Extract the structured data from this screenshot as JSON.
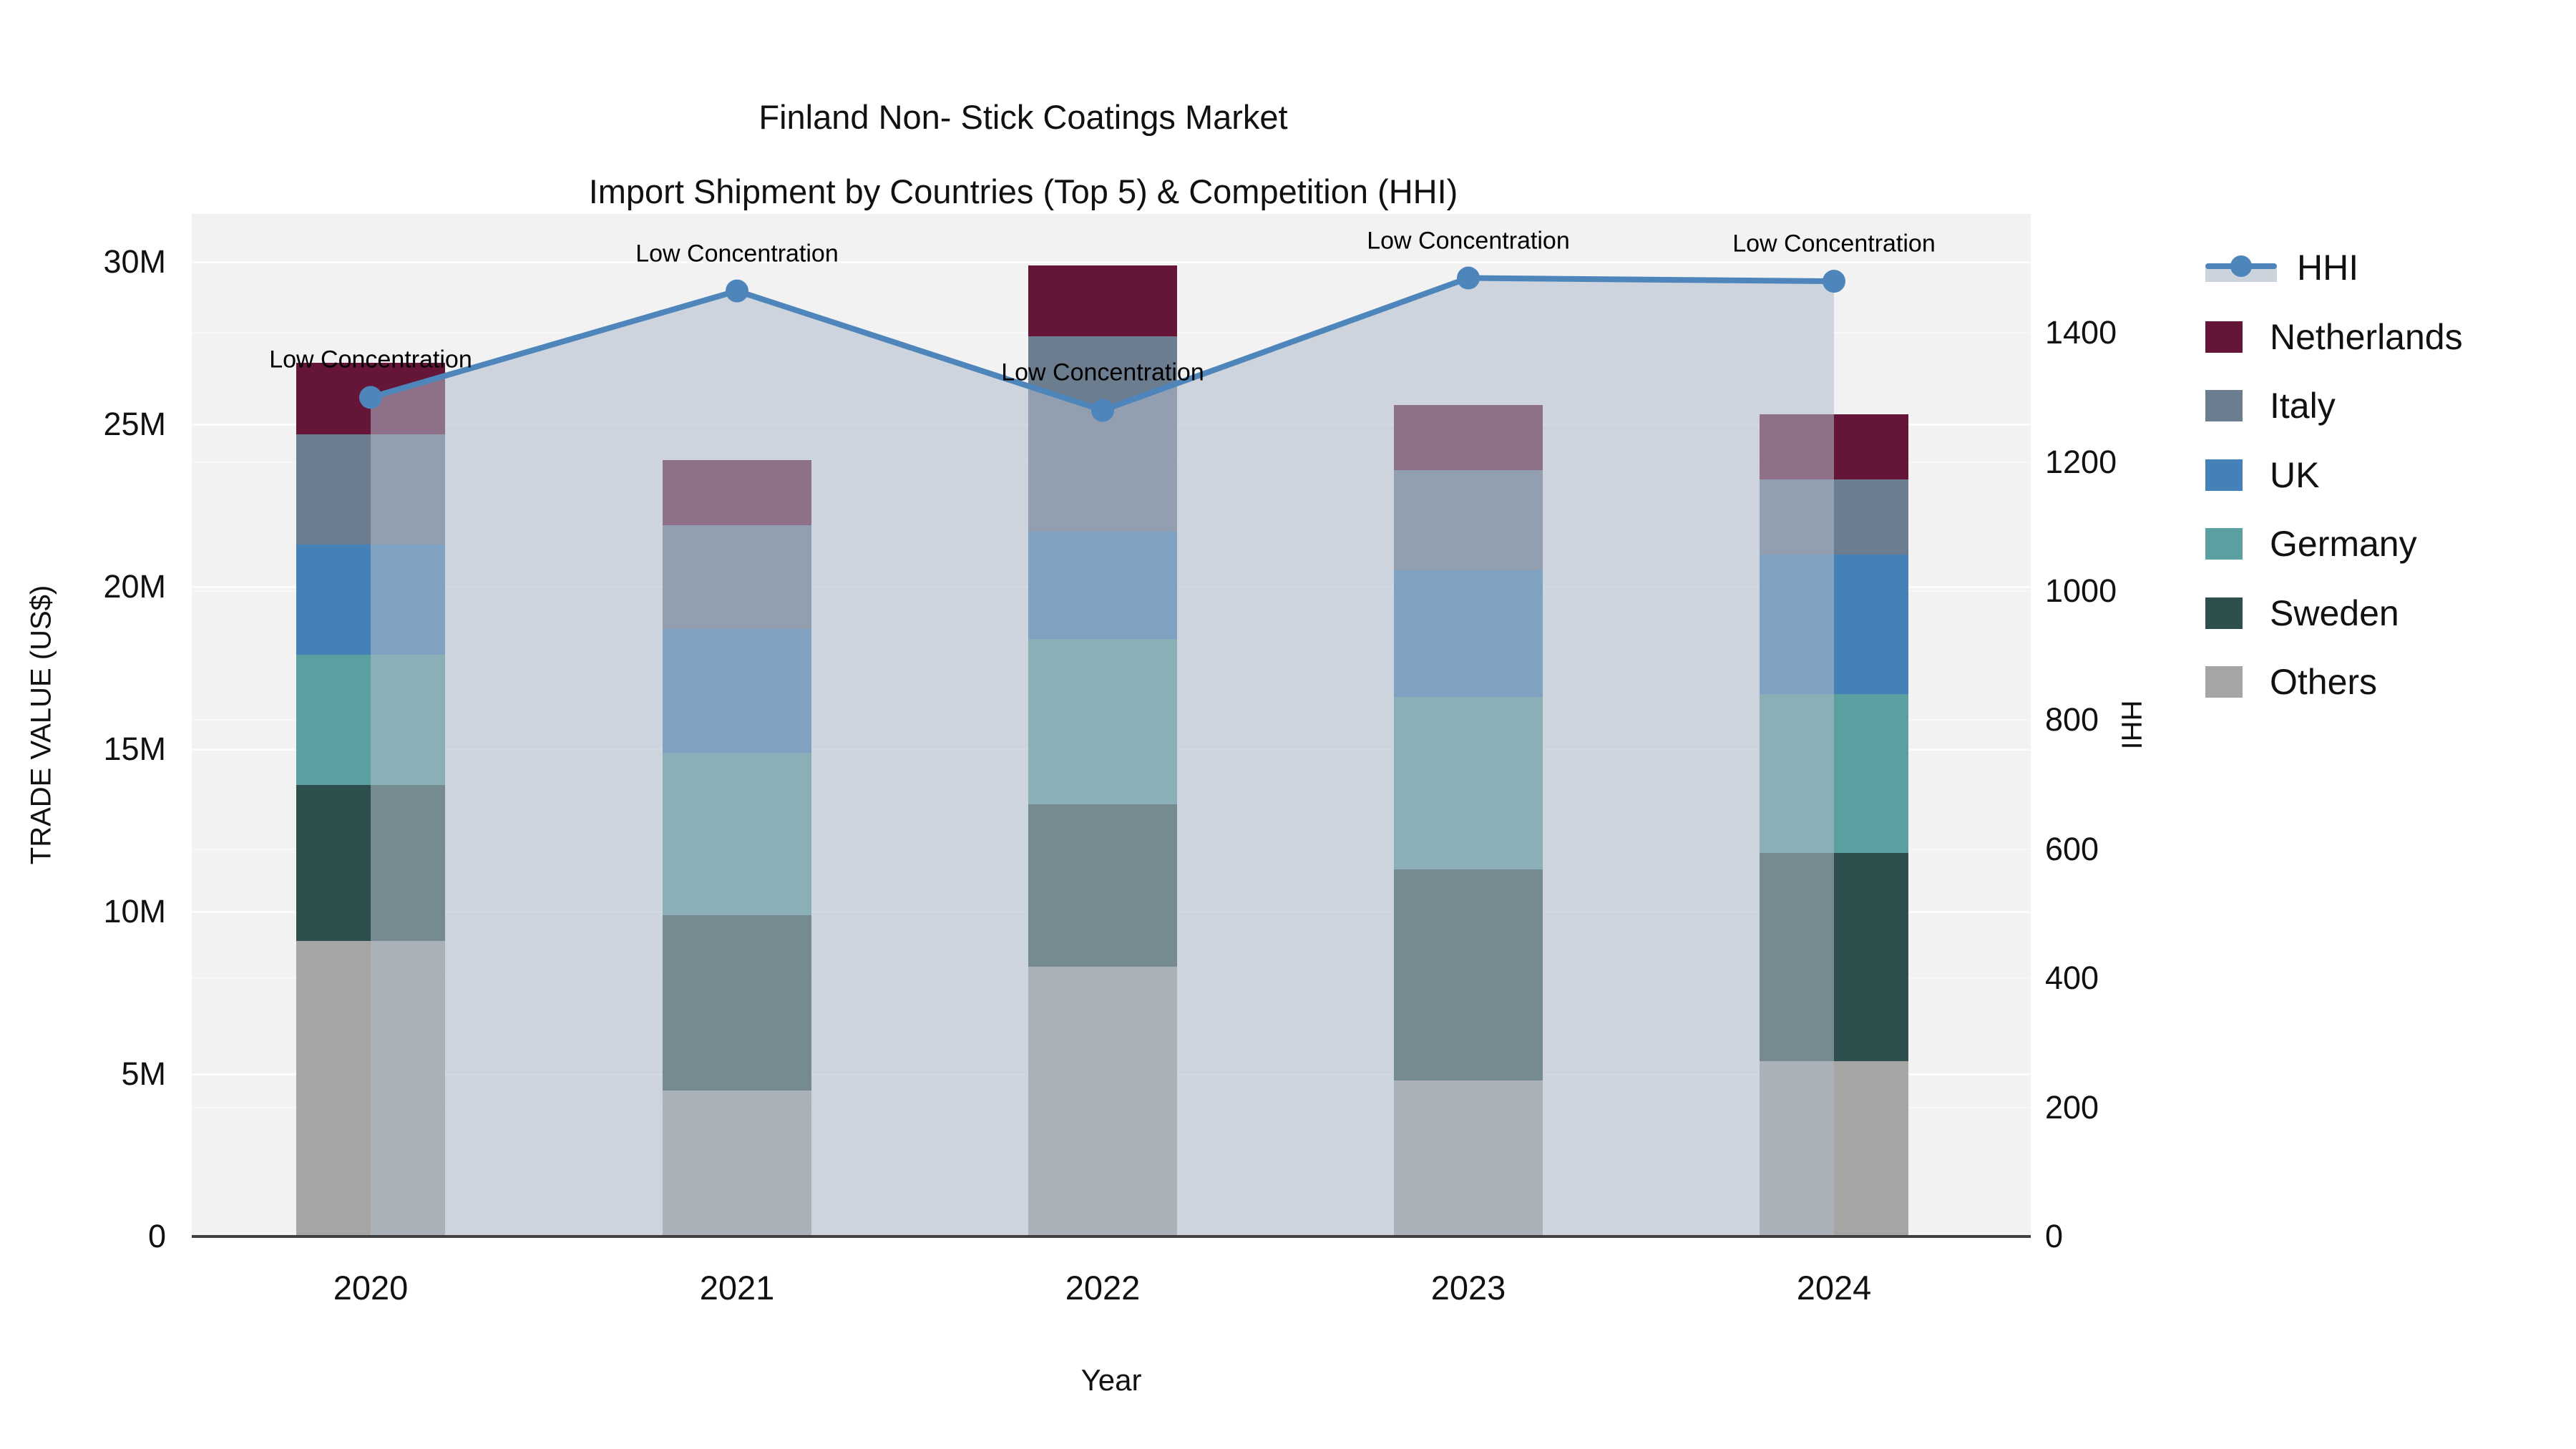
{
  "title": {
    "line1": "Finland Non- Stick Coatings Market",
    "line2": "Import Shipment by Countries (Top 5) & Competition (HHI)"
  },
  "axes": {
    "x": {
      "title": "Year",
      "categories": [
        "2020",
        "2021",
        "2022",
        "2023",
        "2024"
      ]
    },
    "y_left": {
      "title": "TRADE VALUE (US$)",
      "tick_labels": [
        "0",
        "5M",
        "10M",
        "15M",
        "20M",
        "25M",
        "30M"
      ],
      "tick_values": [
        0,
        5,
        10,
        15,
        20,
        25,
        30
      ]
    },
    "y_right": {
      "title": "HHI",
      "tick_labels": [
        "0",
        "200",
        "400",
        "600",
        "800",
        "1000",
        "1200",
        "1400"
      ],
      "tick_values": [
        0,
        200,
        400,
        600,
        800,
        1000,
        1200,
        1400
      ]
    }
  },
  "legend": [
    {
      "label": "HHI",
      "type": "line",
      "color": "#4e86bb"
    },
    {
      "label": "Netherlands",
      "type": "swatch",
      "color": "#641538"
    },
    {
      "label": "Italy",
      "type": "swatch",
      "color": "#6d7d90"
    },
    {
      "label": "UK",
      "type": "swatch",
      "color": "#4381b8"
    },
    {
      "label": "Germany",
      "type": "swatch",
      "color": "#5b9fa0"
    },
    {
      "label": "Sweden",
      "type": "swatch",
      "color": "#2e4f4d"
    },
    {
      "label": "Others",
      "type": "swatch",
      "color": "#a5a5a4"
    }
  ],
  "chart_data": {
    "type": "bar",
    "subtype": "stacked bars + overlaid line with area fill",
    "title": "Finland Non- Stick Coatings Market — Import Shipment by Countries (Top 5) & Competition (HHI)",
    "xlabel": "Year",
    "ylabel": "TRADE VALUE (US$)",
    "ylabel_right": "HHI",
    "categories": [
      "2020",
      "2021",
      "2022",
      "2023",
      "2024"
    ],
    "value_unit": "million US$",
    "series": [
      {
        "name": "Others",
        "values": [
          9.1,
          4.5,
          8.3,
          4.8,
          5.4
        ],
        "color": "#a5a5a4"
      },
      {
        "name": "Sweden",
        "values": [
          4.8,
          5.4,
          5.0,
          6.5,
          6.4
        ],
        "color": "#2e4f4d"
      },
      {
        "name": "Germany",
        "values": [
          4.0,
          5.0,
          5.1,
          5.3,
          4.9
        ],
        "color": "#5b9fa0"
      },
      {
        "name": "UK",
        "values": [
          3.4,
          3.8,
          3.3,
          3.9,
          4.3
        ],
        "color": "#4381b8"
      },
      {
        "name": "Italy",
        "values": [
          3.4,
          3.2,
          6.0,
          3.1,
          2.3
        ],
        "color": "#6d7d90"
      },
      {
        "name": "Netherlands",
        "values": [
          2.2,
          2.0,
          2.2,
          2.0,
          2.0
        ],
        "color": "#641538"
      }
    ],
    "bar_totals": [
      26.9,
      23.9,
      29.9,
      25.6,
      25.3
    ],
    "line_series": {
      "name": "HHI",
      "axis": "right",
      "values": [
        1300,
        1465,
        1280,
        1485,
        1480
      ],
      "color": "#4e86bb",
      "area_fill": "rgba(177,187,203,0.55)",
      "marker": "circle"
    },
    "annotations": [
      {
        "x": "2020",
        "text": "Low Concentration"
      },
      {
        "x": "2021",
        "text": "Low Concentration"
      },
      {
        "x": "2022",
        "text": "Low Concentration"
      },
      {
        "x": "2023",
        "text": "Low Concentration"
      },
      {
        "x": "2024",
        "text": "Low Concentration"
      }
    ],
    "ylim": [
      0,
      31.5
    ],
    "ylim_right": [
      0,
      1584
    ],
    "grid": true,
    "legend_position": "right",
    "plot_background": "#f2f2f3"
  }
}
